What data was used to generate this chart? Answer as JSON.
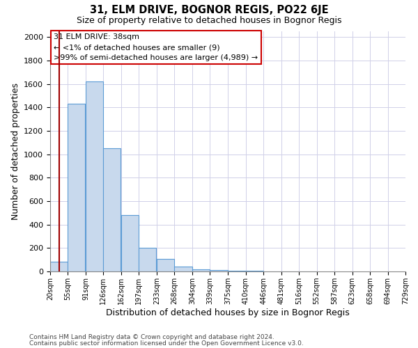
{
  "title": "31, ELM DRIVE, BOGNOR REGIS, PO22 6JE",
  "subtitle": "Size of property relative to detached houses in Bognor Regis",
  "xlabel": "Distribution of detached houses by size in Bognor Regis",
  "ylabel": "Number of detached properties",
  "footnote1": "Contains HM Land Registry data © Crown copyright and database right 2024.",
  "footnote2": "Contains public sector information licensed under the Open Government Licence v3.0.",
  "annotation_title": "31 ELM DRIVE: 38sqm",
  "annotation_line1": "← <1% of detached houses are smaller (9)",
  "annotation_line2": ">99% of semi-detached houses are larger (4,989) →",
  "bar_left_edges": [
    20,
    55,
    91,
    126,
    162,
    197,
    233,
    268,
    304,
    339,
    375,
    410,
    446,
    481,
    516,
    552,
    587,
    623,
    658,
    694
  ],
  "bar_heights": [
    85,
    1430,
    1620,
    1050,
    480,
    200,
    105,
    40,
    20,
    10,
    5,
    3,
    2,
    1,
    1,
    0,
    0,
    0,
    0,
    0
  ],
  "bin_width": 35,
  "bar_color": "#c8d9ed",
  "bar_edge_color": "#5b9bd5",
  "property_x": 38,
  "vline_color": "#a00000",
  "ylim": [
    0,
    2050
  ],
  "yticks": [
    0,
    200,
    400,
    600,
    800,
    1000,
    1200,
    1400,
    1600,
    1800,
    2000
  ],
  "xlim": [
    20,
    729
  ],
  "xtick_labels": [
    "20sqm",
    "55sqm",
    "91sqm",
    "126sqm",
    "162sqm",
    "197sqm",
    "233sqm",
    "268sqm",
    "304sqm",
    "339sqm",
    "375sqm",
    "410sqm",
    "446sqm",
    "481sqm",
    "516sqm",
    "552sqm",
    "587sqm",
    "623sqm",
    "658sqm",
    "694sqm",
    "729sqm"
  ],
  "xtick_positions": [
    20,
    55,
    91,
    126,
    162,
    197,
    233,
    268,
    304,
    339,
    375,
    410,
    446,
    481,
    516,
    552,
    587,
    623,
    658,
    694,
    729
  ],
  "background_color": "#ffffff",
  "grid_color": "#d0d0e8",
  "annotation_box_color": "#ffffff",
  "annotation_box_edge": "#cc0000"
}
